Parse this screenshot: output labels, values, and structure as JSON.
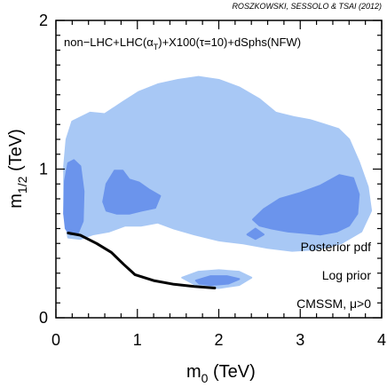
{
  "credit": "ROSZKOWSKI, SESSOLO & TSAI (2012)",
  "chart_data": {
    "type": "contour",
    "title": "non−LHC+LHC(α_T)+X100(τ=10)+dSphs(NFW)",
    "title_parts": {
      "before": "non−LHC+LHC(α",
      "sub": "T",
      "after": ")+X100(τ=10)+dSphs(NFW)"
    },
    "xlabel": {
      "main": "m",
      "sub": "0",
      "unit": " (TeV)"
    },
    "ylabel": {
      "main": "m",
      "sub": "1/2",
      "unit": " (TeV)"
    },
    "xlim": [
      0,
      4
    ],
    "ylim": [
      0,
      2
    ],
    "xticks": [
      "0",
      "1",
      "2",
      "3",
      "4"
    ],
    "yticks": [
      "0",
      "1",
      "2"
    ],
    "annotations": [
      "Posterior pdf",
      "Log prior",
      "CMSSM, μ>0"
    ],
    "colors": {
      "region_95": "#a8c8f5",
      "region_68": "#6b94ec",
      "boundary_line": "#000000"
    },
    "regions_95": [
      {
        "name": "main-95-region",
        "points": [
          [
            0.1,
            1.02
          ],
          [
            0.13,
            1.2
          ],
          [
            0.2,
            1.32
          ],
          [
            0.42,
            1.38
          ],
          [
            0.6,
            1.37
          ],
          [
            0.82,
            1.45
          ],
          [
            1.02,
            1.52
          ],
          [
            1.25,
            1.57
          ],
          [
            1.5,
            1.6
          ],
          [
            1.75,
            1.62
          ],
          [
            2.0,
            1.6
          ],
          [
            2.25,
            1.55
          ],
          [
            2.5,
            1.47
          ],
          [
            2.7,
            1.38
          ],
          [
            2.92,
            1.35
          ],
          [
            3.12,
            1.33
          ],
          [
            3.3,
            1.3
          ],
          [
            3.47,
            1.27
          ],
          [
            3.6,
            1.2
          ],
          [
            3.72,
            1.05
          ],
          [
            3.83,
            0.88
          ],
          [
            3.87,
            0.72
          ],
          [
            3.75,
            0.58
          ],
          [
            3.5,
            0.5
          ],
          [
            3.2,
            0.46
          ],
          [
            2.9,
            0.45
          ],
          [
            2.6,
            0.47
          ],
          [
            2.3,
            0.5
          ],
          [
            2.0,
            0.52
          ],
          [
            1.7,
            0.56
          ],
          [
            1.45,
            0.6
          ],
          [
            1.25,
            0.64
          ],
          [
            1.05,
            0.62
          ],
          [
            0.85,
            0.62
          ],
          [
            0.65,
            0.58
          ],
          [
            0.45,
            0.56
          ],
          [
            0.3,
            0.53
          ],
          [
            0.15,
            0.54
          ],
          [
            0.1,
            0.7
          ]
        ]
      },
      {
        "name": "lower-95-region",
        "points": [
          [
            1.55,
            0.27
          ],
          [
            1.75,
            0.31
          ],
          [
            2.0,
            0.32
          ],
          [
            2.25,
            0.31
          ],
          [
            2.4,
            0.27
          ],
          [
            2.25,
            0.22
          ],
          [
            2.0,
            0.2
          ],
          [
            1.75,
            0.21
          ]
        ]
      }
    ],
    "regions_68": [
      {
        "name": "left-68-region",
        "points": [
          [
            0.1,
            0.7
          ],
          [
            0.11,
            0.92
          ],
          [
            0.15,
            1.04
          ],
          [
            0.22,
            1.06
          ],
          [
            0.3,
            1.02
          ],
          [
            0.34,
            0.85
          ],
          [
            0.33,
            0.65
          ],
          [
            0.27,
            0.57
          ],
          [
            0.18,
            0.56
          ],
          [
            0.12,
            0.6
          ]
        ]
      },
      {
        "name": "center-68-region",
        "points": [
          [
            0.58,
            0.78
          ],
          [
            0.62,
            0.9
          ],
          [
            0.72,
            0.99
          ],
          [
            0.82,
            0.99
          ],
          [
            0.9,
            0.93
          ],
          [
            1.02,
            0.91
          ],
          [
            1.15,
            0.86
          ],
          [
            1.28,
            0.82
          ],
          [
            1.22,
            0.74
          ],
          [
            1.05,
            0.72
          ],
          [
            0.9,
            0.7
          ],
          [
            0.75,
            0.7
          ],
          [
            0.62,
            0.72
          ]
        ]
      },
      {
        "name": "right-68-region",
        "points": [
          [
            2.42,
            0.66
          ],
          [
            2.55,
            0.73
          ],
          [
            2.75,
            0.8
          ],
          [
            3.0,
            0.84
          ],
          [
            3.25,
            0.89
          ],
          [
            3.48,
            0.96
          ],
          [
            3.65,
            0.94
          ],
          [
            3.72,
            0.83
          ],
          [
            3.7,
            0.7
          ],
          [
            3.6,
            0.62
          ],
          [
            3.45,
            0.58
          ],
          [
            3.25,
            0.56
          ],
          [
            3.05,
            0.57
          ],
          [
            2.85,
            0.58
          ],
          [
            2.65,
            0.6
          ],
          [
            2.5,
            0.62
          ]
        ]
      },
      {
        "name": "lower-68-region",
        "points": [
          [
            1.72,
            0.25
          ],
          [
            1.9,
            0.28
          ],
          [
            2.1,
            0.28
          ],
          [
            2.25,
            0.26
          ],
          [
            2.12,
            0.23
          ],
          [
            1.9,
            0.22
          ],
          [
            1.76,
            0.23
          ]
        ]
      },
      {
        "name": "small-68-blob",
        "points": [
          [
            2.35,
            0.56
          ],
          [
            2.45,
            0.6
          ],
          [
            2.55,
            0.56
          ],
          [
            2.45,
            0.53
          ]
        ]
      }
    ],
    "boundary_line": [
      [
        0.15,
        0.57
      ],
      [
        0.3,
        0.555
      ],
      [
        0.5,
        0.5
      ],
      [
        0.68,
        0.44
      ],
      [
        0.83,
        0.36
      ],
      [
        0.97,
        0.29
      ],
      [
        1.2,
        0.25
      ],
      [
        1.45,
        0.225
      ],
      [
        1.7,
        0.21
      ],
      [
        1.95,
        0.2
      ]
    ]
  }
}
